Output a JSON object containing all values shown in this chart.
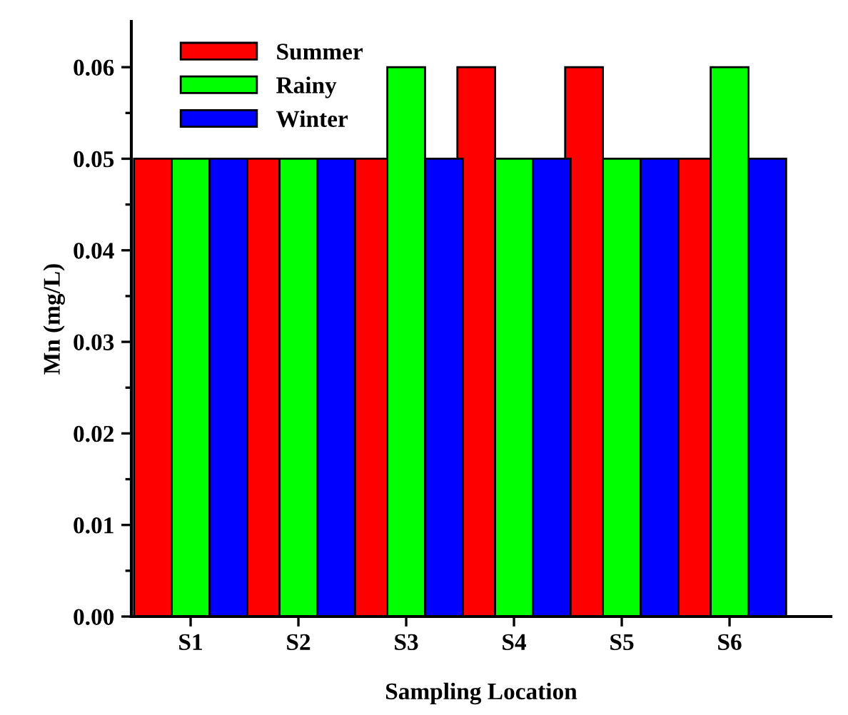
{
  "chart_data": {
    "type": "bar",
    "xlabel": "Sampling Location",
    "ylabel": "Mn (mg/L)",
    "categories": [
      "S1",
      "S2",
      "S3",
      "S4",
      "S5",
      "S6"
    ],
    "series": [
      {
        "name": "Summer",
        "color": "#ff0000",
        "values": [
          0.05,
          0.05,
          0.05,
          0.06,
          0.06,
          0.05
        ]
      },
      {
        "name": "Rainy",
        "color": "#00ff00",
        "values": [
          0.05,
          0.05,
          0.06,
          0.05,
          0.05,
          0.06
        ]
      },
      {
        "name": "Winter",
        "color": "#0000ff",
        "values": [
          0.05,
          0.05,
          0.05,
          0.05,
          0.05,
          0.05
        ]
      }
    ],
    "ylim": [
      0,
      0.065
    ],
    "yticks": [
      {
        "value": 0,
        "label": "0.00"
      },
      {
        "value": 0.01,
        "label": "0.01"
      },
      {
        "value": 0.02,
        "label": "0.02"
      },
      {
        "value": 0.03,
        "label": "0.03"
      },
      {
        "value": 0.04,
        "label": "0.04"
      },
      {
        "value": 0.05,
        "label": "0.05"
      },
      {
        "value": 0.06,
        "label": "0.06"
      }
    ],
    "legend": "top left",
    "grid": false
  }
}
